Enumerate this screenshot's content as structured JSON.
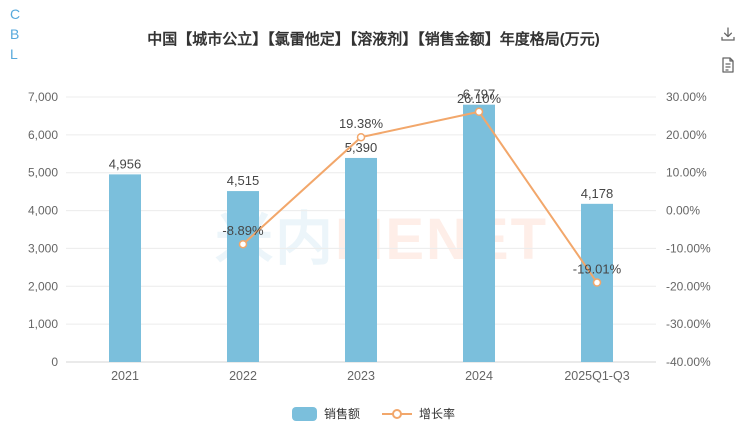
{
  "side_letters": [
    "C",
    "B",
    "L"
  ],
  "title": "中国【城市公立】【氯雷他定】【溶液剂】【销售金额】年度格局(万元)",
  "watermark": {
    "cn": "米内",
    "en": "MENET"
  },
  "legend": {
    "bar_label": "销售额",
    "line_label": "增长率"
  },
  "colors": {
    "bar": "#7bbfdc",
    "line": "#f2a76b",
    "data_label": "#464646",
    "axis_label": "#666666",
    "gridline": "#ececec",
    "axis_line": "#d6d6d6",
    "title": "#333333",
    "side_letters": "#57a9dc"
  },
  "chart_data": {
    "type": "bar+line",
    "title": "中国【城市公立】【氯雷他定】【溶液剂】【销售金额】年度格局(万元)",
    "categories": [
      "2021",
      "2022",
      "2023",
      "2024",
      "2025Q1-Q3"
    ],
    "series": [
      {
        "name": "销售额",
        "type": "bar",
        "axis": "left",
        "values": [
          4956,
          4515,
          5390,
          6797,
          4178
        ],
        "labels": [
          "4,956",
          "4,515",
          "5,390",
          "6,797",
          "4,178"
        ]
      },
      {
        "name": "增长率",
        "type": "line",
        "axis": "right",
        "values": [
          null,
          -8.89,
          19.38,
          26.1,
          -19.01
        ],
        "labels": [
          null,
          "-8.89%",
          "19.38%",
          "26.10%",
          "-19.01%"
        ]
      }
    ],
    "left_axis": {
      "min": 0,
      "max": 7000,
      "ticks": [
        "7,000",
        "6,000",
        "5,000",
        "4,000",
        "3,000",
        "2,000",
        "1,000",
        "0"
      ]
    },
    "right_axis": {
      "min": -40,
      "max": 30,
      "ticks": [
        "30.00%",
        "20.00%",
        "10.00%",
        "0.00%",
        "-10.00%",
        "-20.00%",
        "-30.00%",
        "-40.00%"
      ]
    },
    "grid": true,
    "legend_position": "bottom"
  }
}
